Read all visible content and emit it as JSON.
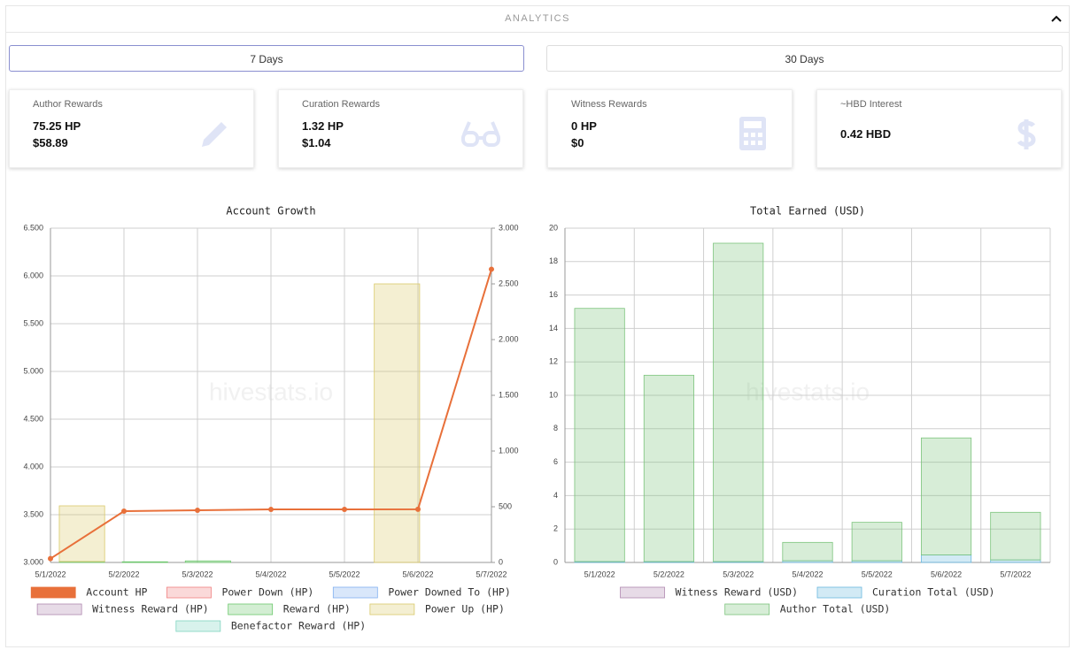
{
  "header": {
    "title": "ANALYTICS"
  },
  "tabs": [
    {
      "label": "7 Days",
      "active": true
    },
    {
      "label": "30 Days",
      "active": false
    }
  ],
  "cards": [
    {
      "label": "Author Rewards",
      "lines": [
        "75.25 HP",
        "$58.89"
      ]
    },
    {
      "label": "Curation Rewards",
      "lines": [
        "1.32 HP",
        "$1.04"
      ]
    },
    {
      "label": "Witness Rewards",
      "lines": [
        "0 HP",
        "$0"
      ]
    },
    {
      "label": "~HBD Interest",
      "lines": [
        "0.42 HBD"
      ]
    }
  ],
  "chart_data": [
    {
      "type": "combo",
      "title": "Account Growth",
      "watermark": "hivestats.io",
      "categories": [
        "5/1/2022",
        "5/2/2022",
        "5/3/2022",
        "5/4/2022",
        "5/5/2022",
        "5/6/2022",
        "5/7/2022"
      ],
      "ylim": [
        3000,
        6500
      ],
      "yticks": [
        {
          "value": 3000,
          "label": "3.000"
        },
        {
          "value": 3500,
          "label": "3.500"
        },
        {
          "value": 4000,
          "label": "4.000"
        },
        {
          "value": 4500,
          "label": "4.500"
        },
        {
          "value": 5000,
          "label": "5.000"
        },
        {
          "value": 5500,
          "label": "5.500"
        },
        {
          "value": 6000,
          "label": "6.000"
        },
        {
          "value": 6500,
          "label": "6.500"
        }
      ],
      "y2lim": [
        0,
        3000
      ],
      "y2ticks": [
        0,
        500,
        {
          "value": 1000,
          "label": "1.000"
        },
        {
          "value": 1500,
          "label": "1.500"
        },
        {
          "value": 2000,
          "label": "2.000"
        },
        {
          "value": 2500,
          "label": "2.500"
        },
        {
          "value": 3000,
          "label": "3.000"
        }
      ],
      "grid": true,
      "series": [
        {
          "name": "Account HP",
          "color": "#e8703a",
          "type": "line",
          "values": [
            3040,
            3537,
            3546,
            3555,
            3556,
            3557,
            6070
          ]
        },
        {
          "name": "Power Down (HP)",
          "color": "#f08080",
          "axis": "y2",
          "values": [
            0,
            0,
            0,
            0,
            0,
            0,
            0
          ]
        },
        {
          "name": "Power Downed To (HP)",
          "color": "#80b0f0",
          "axis": "y2",
          "values": [
            0,
            0,
            0,
            0,
            0,
            0,
            0
          ]
        },
        {
          "name": "Witness Reward (HP)",
          "color": "#b088b0",
          "axis": "y2",
          "values": [
            0,
            0,
            0,
            0,
            0,
            0,
            0
          ]
        },
        {
          "name": "Reward (HP)",
          "color": "#6cc86c",
          "axis": "y2",
          "values": [
            8,
            6,
            14,
            0,
            0,
            0,
            0
          ]
        },
        {
          "name": "Power Up (HP)",
          "color": "#d9c96a",
          "axis": "y2",
          "values": [
            500,
            0,
            0,
            0,
            0,
            2500,
            0
          ]
        },
        {
          "name": "Benefactor Reward (HP)",
          "color": "#7fd4c0",
          "axis": "y2",
          "values": [
            0,
            0,
            0,
            0,
            0,
            0,
            0
          ]
        }
      ]
    },
    {
      "type": "stacked_bar",
      "title": "Total Earned (USD)",
      "watermark": "hivestats.io",
      "categories": [
        "5/1/2022",
        "5/2/2022",
        "5/3/2022",
        "5/4/2022",
        "5/5/2022",
        "5/6/2022",
        "5/7/2022"
      ],
      "ylim": [
        0,
        20
      ],
      "yticks": [
        0,
        2,
        4,
        6,
        8,
        10,
        12,
        14,
        16,
        18,
        20
      ],
      "grid": true,
      "series": [
        {
          "name": "Witness Reward (USD)",
          "color": "#b088b0",
          "values": [
            0,
            0,
            0,
            0,
            0,
            0,
            0
          ]
        },
        {
          "name": "Curation Total (USD)",
          "color": "#6ab8de",
          "values": [
            0.05,
            0.05,
            0.05,
            0.1,
            0.1,
            0.45,
            0.15
          ]
        },
        {
          "name": "Author Total (USD)",
          "color": "#7cc47c",
          "values": [
            15.15,
            11.15,
            19.05,
            1.1,
            2.3,
            7.0,
            2.85
          ]
        }
      ]
    }
  ]
}
